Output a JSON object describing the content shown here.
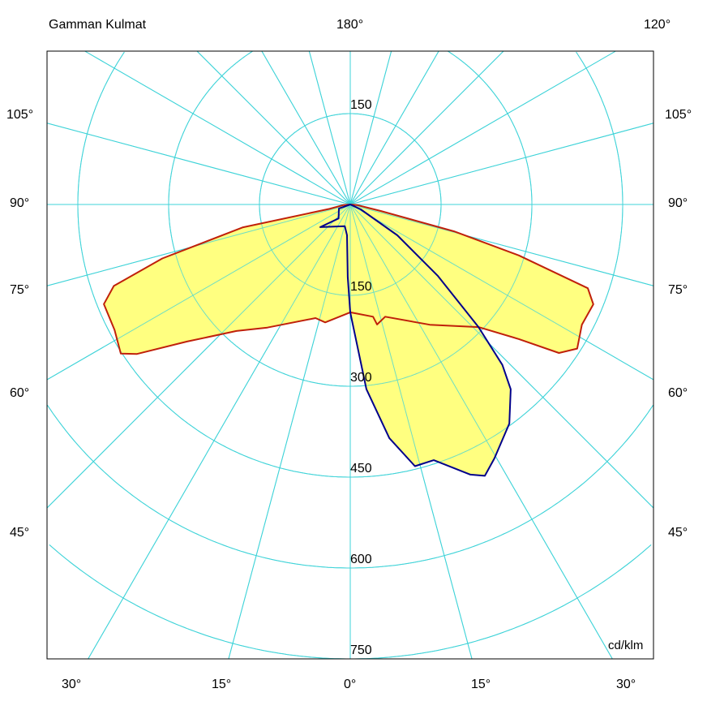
{
  "chart_data": {
    "type": "polar",
    "title": "Gamman Kulmat",
    "unit": "cd/klm",
    "radial_ticks": [
      150,
      300,
      450,
      600,
      750
    ],
    "radial_range": [
      0,
      900
    ],
    "grid": true,
    "angle_step_deg": 15,
    "angle_labels": {
      "top": [
        "180°",
        "120°"
      ],
      "left": [
        "105°",
        "90°",
        "75°",
        "60°",
        "45°"
      ],
      "right": [
        "105°",
        "90°",
        "75°",
        "60°",
        "45°"
      ],
      "bottom": [
        "30°",
        "15°",
        "0°",
        "15°",
        "30°"
      ]
    },
    "colors": {
      "grid": "#3fd3d8",
      "fill": "#ffff80",
      "curve1": "#c0200a",
      "curve2": "#00008b"
    },
    "series": [
      {
        "color": "#c0200a",
        "left": [
          [
            90,
            0
          ],
          [
            85,
            12
          ],
          [
            78,
            35
          ],
          [
            78,
            181
          ],
          [
            74,
            323
          ],
          [
            71,
            413
          ],
          [
            68,
            439
          ],
          [
            62,
            441
          ],
          [
            57,
            452
          ],
          [
            55,
            430
          ],
          [
            50,
            352
          ],
          [
            42,
            281
          ],
          [
            34,
            245
          ],
          [
            17,
            196
          ],
          [
            12,
            199
          ],
          [
            0,
            178
          ]
        ],
        "right": [
          [
            0,
            178
          ],
          [
            11.5,
            189
          ],
          [
            12.6,
            203
          ],
          [
            17.3,
            194
          ],
          [
            33.5,
            238
          ],
          [
            46.3,
            293
          ],
          [
            51.4,
            356
          ],
          [
            54.6,
            423
          ],
          [
            57.6,
            444
          ],
          [
            62.6,
            431
          ],
          [
            67.7,
            434
          ],
          [
            70.6,
            416
          ],
          [
            73.2,
            291
          ],
          [
            75.5,
            177
          ],
          [
            78,
            52
          ],
          [
            85,
            12
          ],
          [
            90,
            0
          ]
        ]
      },
      {
        "color": "#00008b",
        "left": [
          [
            90,
            0
          ],
          [
            70,
            20
          ],
          [
            40,
            30
          ],
          [
            53,
            62
          ],
          [
            14,
            37
          ],
          [
            6,
            51
          ],
          [
            2,
            120
          ],
          [
            0,
            178
          ]
        ],
        "right": [
          [
            0,
            178
          ],
          [
            5,
            306
          ],
          [
            9.5,
            391
          ],
          [
            13.9,
            445
          ],
          [
            18.1,
            444
          ],
          [
            24,
            488
          ],
          [
            26.4,
            500
          ],
          [
            29.6,
            482
          ],
          [
            36,
            447
          ],
          [
            41,
            404
          ],
          [
            43.5,
            365
          ],
          [
            46.3,
            293
          ],
          [
            50.8,
            187
          ],
          [
            56.8,
            93
          ],
          [
            65,
            19
          ],
          [
            90,
            0
          ]
        ]
      }
    ]
  }
}
